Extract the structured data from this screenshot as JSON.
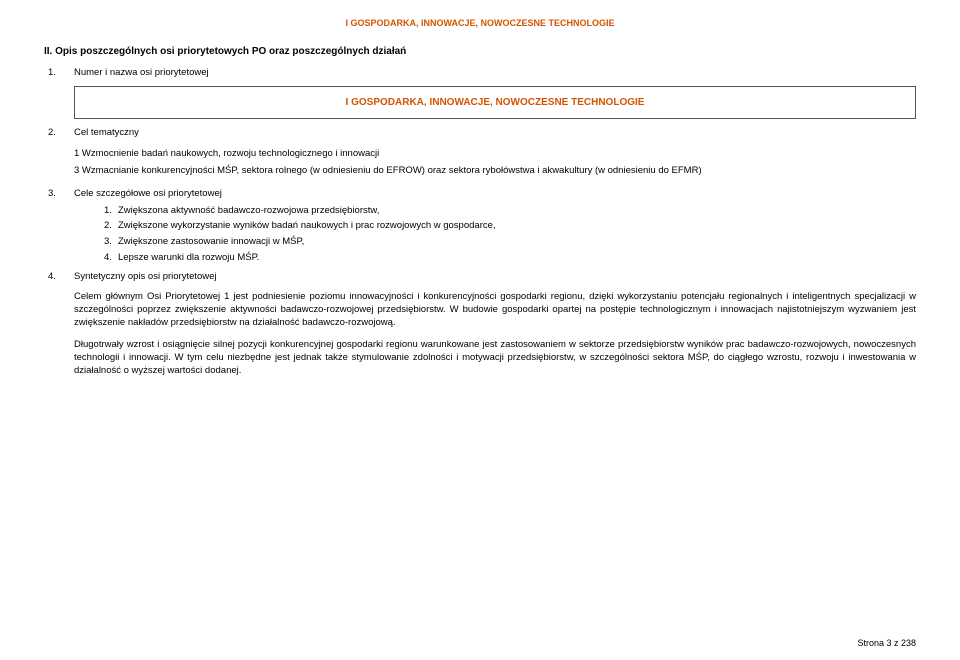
{
  "header": "I GOSPODARKA, INNOWACJE, NOWOCZESNE TECHNOLOGIE",
  "section_title": "II. Opis poszczególnych osi priorytetowych PO oraz poszczególnych działań",
  "rows": {
    "r1": {
      "num": "1.",
      "label": "Numer i nazwa osi priorytetowej"
    },
    "r2": {
      "num": "2.",
      "label": "Cel tematyczny"
    },
    "r3": {
      "num": "3.",
      "label": "Cele szczegółowe osi priorytetowej"
    },
    "r4": {
      "num": "4.",
      "label": "Syntetyczny opis osi priorytetowej"
    }
  },
  "banner": "I GOSPODARKA, INNOWACJE, NOWOCZESNE TECHNOLOGIE",
  "block2": {
    "line1": "1 Wzmocnienie badań naukowych, rozwoju technologicznego i innowacji",
    "line2": "3 Wzmacnianie konkurencyjności MŚP, sektora rolnego (w odniesieniu do EFROW) oraz sektora rybołówstwa i akwakultury (w odniesieniu do EFMR)"
  },
  "goals": {
    "g1": {
      "n": "1.",
      "t": "Zwiększona aktywność badawczo-rozwojowa przedsiębiorstw,"
    },
    "g2": {
      "n": "2.",
      "t": "Zwiększone wykorzystanie wyników badań naukowych i prac rozwojowych w gospodarce,"
    },
    "g3": {
      "n": "3.",
      "t": "Zwiększone zastosowanie innowacji w MŚP,"
    },
    "g4": {
      "n": "4.",
      "t": "Lepsze warunki dla rozwoju MŚP."
    }
  },
  "para1": "Celem głównym Osi Priorytetowej 1 jest podniesienie poziomu innowacyjności i konkurencyjności gospodarki regionu, dzięki wykorzystaniu potencjału regionalnych i inteligentnych specjalizacji w szczególności poprzez zwiększenie aktywności badawczo-rozwojowej przedsiębiorstw. W budowie gospodarki opartej na postępie technologicznym i innowacjach najistotniejszym wyzwaniem jest zwiększenie nakładów przedsiębiorstw na działalność badawczo-rozwojową.",
  "para2": "Długotrwały wzrost i osiągnięcie silnej pozycji konkurencyjnej gospodarki regionu warunkowane jest zastosowaniem w sektorze przedsiębiorstw wyników prac badawczo-rozwojowych, nowoczesnych technologii i innowacji. W tym celu niezbędne jest jednak także stymulowanie zdolności i motywacji przedsiębiorstw, w szczególności sektora MŚP, do ciągłego wzrostu, rozwoju i inwestowania w działalność o wyższej wartości dodanej.",
  "footer": "Strona 3 z 238"
}
